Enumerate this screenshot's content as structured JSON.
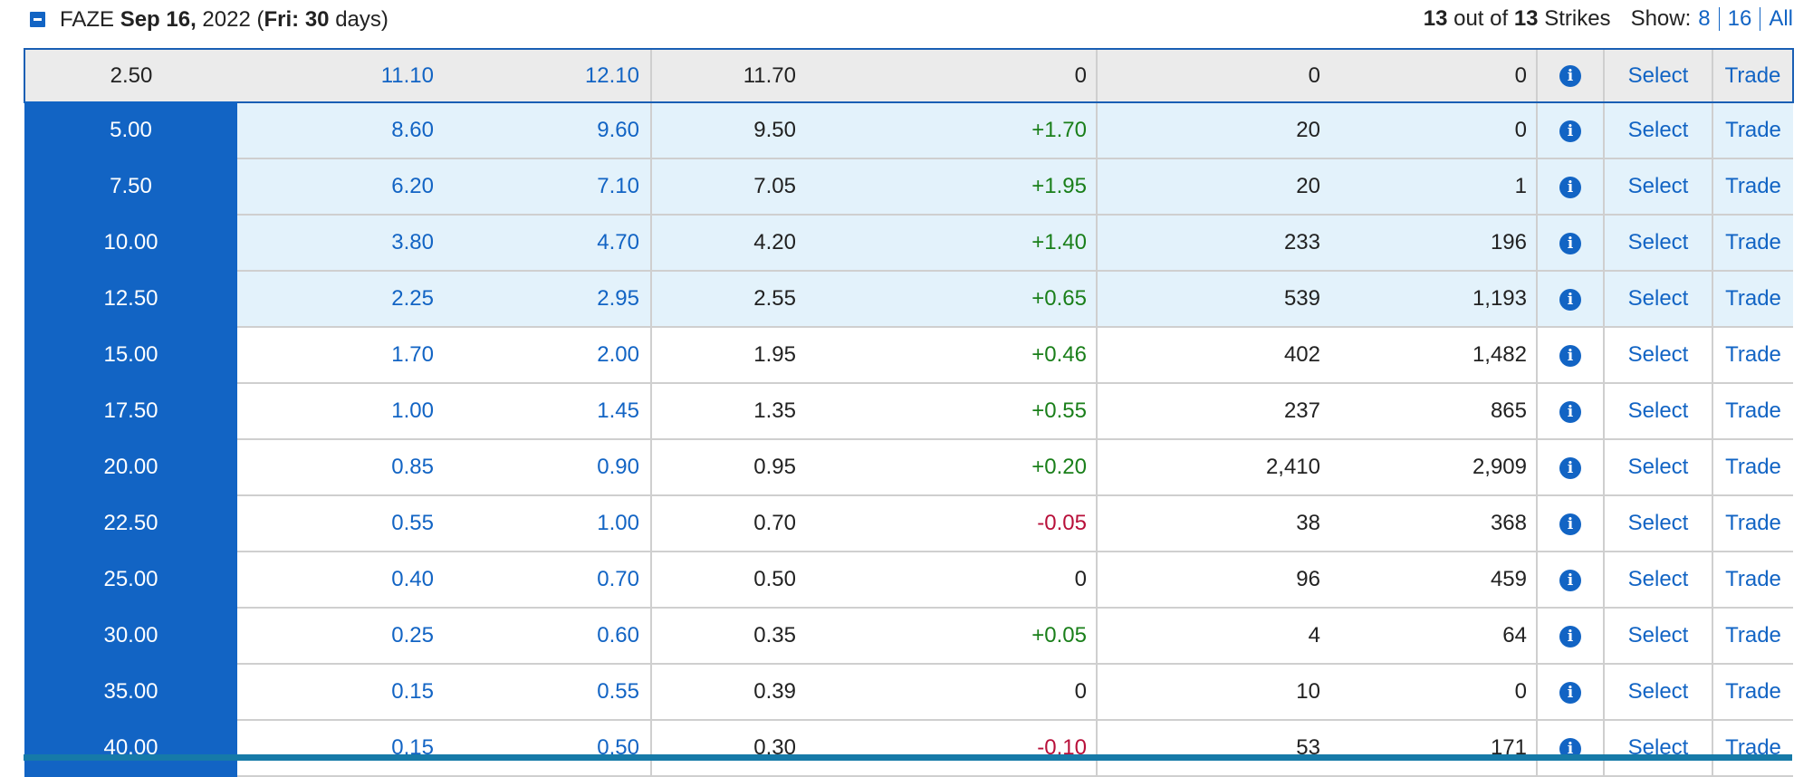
{
  "header": {
    "symbol": "FAZE",
    "date_bold": "Sep 16,",
    "year": "2022",
    "day_label": "Fri:",
    "days_count": "30",
    "days_word": "days)",
    "strikes_shown": "13",
    "out_of_text": "out of",
    "strikes_total": "13",
    "strikes_word": "Strikes",
    "show_label": "Show:",
    "show_options": [
      "8",
      "16",
      "All"
    ]
  },
  "colors": {
    "accent": "#1264c4",
    "positive": "#1a7f1a",
    "negative": "#b8103a",
    "highlight_row": "#e3f2fb",
    "selected_row": "#ebebeb"
  },
  "row_action_labels": {
    "info_icon": "info-icon",
    "select": "Select",
    "trade": "Trade"
  },
  "rows": [
    {
      "strike": "2.50",
      "bid": "11.10",
      "ask": "12.10",
      "last": "11.70",
      "change": "0",
      "volume": "0",
      "open_interest": "0",
      "state": "selected",
      "change_dir": "zero"
    },
    {
      "strike": "5.00",
      "bid": "8.60",
      "ask": "9.60",
      "last": "9.50",
      "change": "+1.70",
      "volume": "20",
      "open_interest": "0",
      "state": "itm",
      "change_dir": "pos"
    },
    {
      "strike": "7.50",
      "bid": "6.20",
      "ask": "7.10",
      "last": "7.05",
      "change": "+1.95",
      "volume": "20",
      "open_interest": "1",
      "state": "itm",
      "change_dir": "pos"
    },
    {
      "strike": "10.00",
      "bid": "3.80",
      "ask": "4.70",
      "last": "4.20",
      "change": "+1.40",
      "volume": "233",
      "open_interest": "196",
      "state": "itm",
      "change_dir": "pos"
    },
    {
      "strike": "12.50",
      "bid": "2.25",
      "ask": "2.95",
      "last": "2.55",
      "change": "+0.65",
      "volume": "539",
      "open_interest": "1,193",
      "state": "itm",
      "change_dir": "pos"
    },
    {
      "strike": "15.00",
      "bid": "1.70",
      "ask": "2.00",
      "last": "1.95",
      "change": "+0.46",
      "volume": "402",
      "open_interest": "1,482",
      "state": "otm",
      "change_dir": "pos"
    },
    {
      "strike": "17.50",
      "bid": "1.00",
      "ask": "1.45",
      "last": "1.35",
      "change": "+0.55",
      "volume": "237",
      "open_interest": "865",
      "state": "otm",
      "change_dir": "pos"
    },
    {
      "strike": "20.00",
      "bid": "0.85",
      "ask": "0.90",
      "last": "0.95",
      "change": "+0.20",
      "volume": "2,410",
      "open_interest": "2,909",
      "state": "otm",
      "change_dir": "pos"
    },
    {
      "strike": "22.50",
      "bid": "0.55",
      "ask": "1.00",
      "last": "0.70",
      "change": "-0.05",
      "volume": "38",
      "open_interest": "368",
      "state": "otm",
      "change_dir": "neg"
    },
    {
      "strike": "25.00",
      "bid": "0.40",
      "ask": "0.70",
      "last": "0.50",
      "change": "0",
      "volume": "96",
      "open_interest": "459",
      "state": "otm",
      "change_dir": "zero"
    },
    {
      "strike": "30.00",
      "bid": "0.25",
      "ask": "0.60",
      "last": "0.35",
      "change": "+0.05",
      "volume": "4",
      "open_interest": "64",
      "state": "otm",
      "change_dir": "pos"
    },
    {
      "strike": "35.00",
      "bid": "0.15",
      "ask": "0.55",
      "last": "0.39",
      "change": "0",
      "volume": "10",
      "open_interest": "0",
      "state": "otm",
      "change_dir": "zero"
    },
    {
      "strike": "40.00",
      "bid": "0.15",
      "ask": "0.50",
      "last": "0.30",
      "change": "-0.10",
      "volume": "53",
      "open_interest": "171",
      "state": "otm",
      "change_dir": "neg"
    }
  ]
}
